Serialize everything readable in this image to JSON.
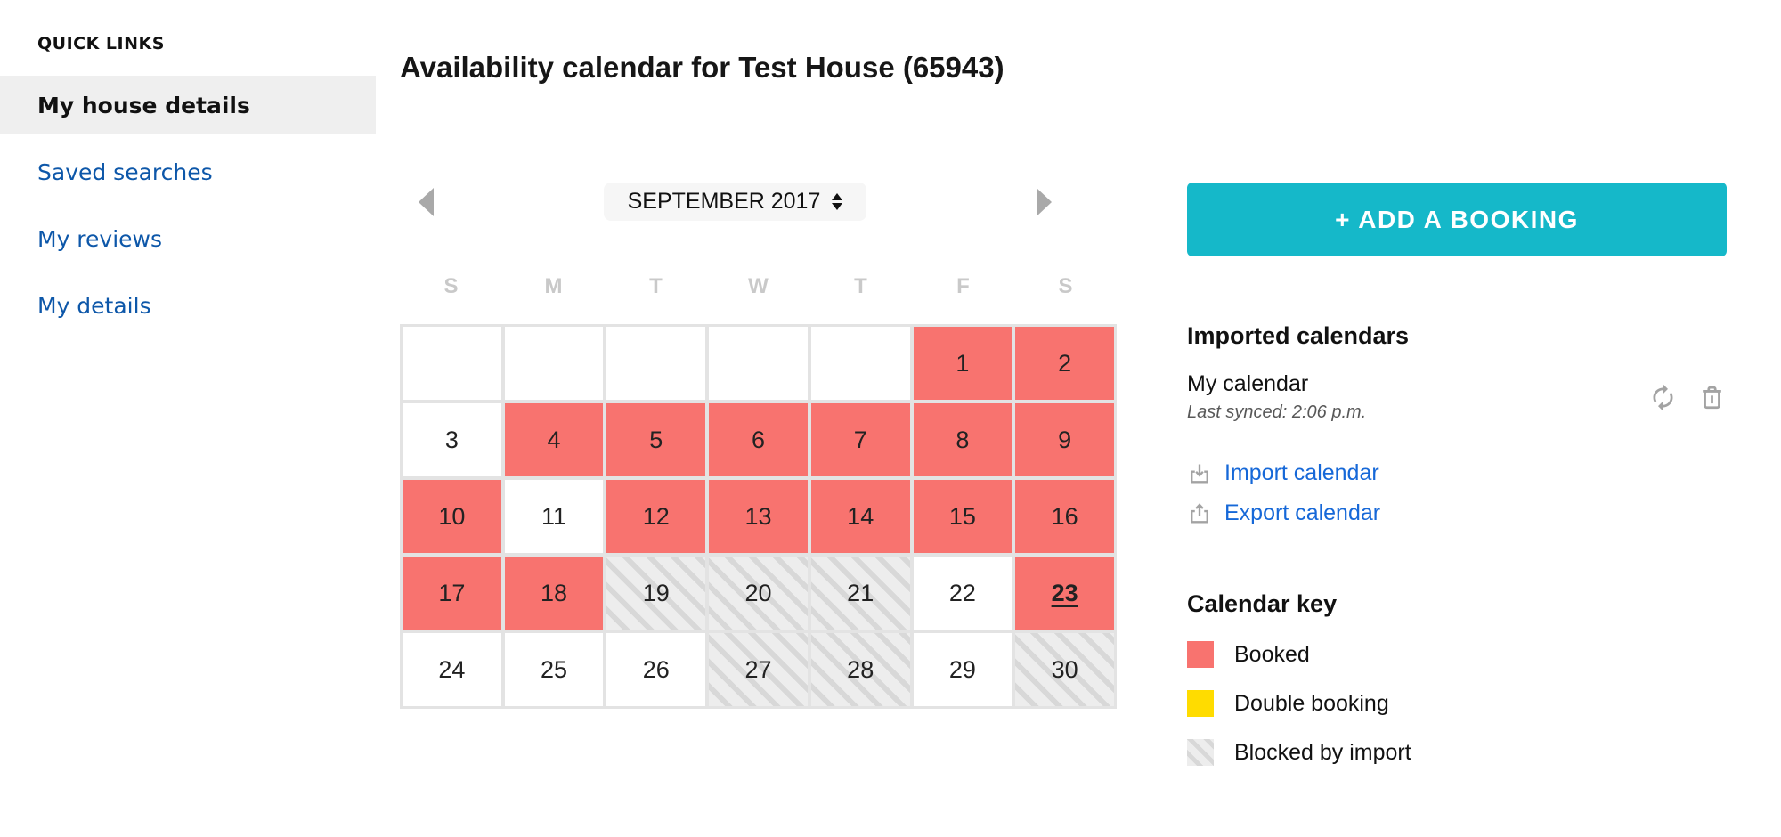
{
  "sidebar": {
    "heading": "QUICK LINKS",
    "items": [
      {
        "label": "My house details",
        "active": true
      },
      {
        "label": "Saved searches",
        "active": false
      },
      {
        "label": "My reviews",
        "active": false
      },
      {
        "label": "My details",
        "active": false
      }
    ]
  },
  "page_title": "Availability calendar for Test House (65943)",
  "calendar": {
    "month_label": "SEPTEMBER 2017",
    "day_headers": [
      "S",
      "M",
      "T",
      "W",
      "T",
      "F",
      "S"
    ],
    "cells": [
      {
        "day": "",
        "state": "blank"
      },
      {
        "day": "",
        "state": "blank"
      },
      {
        "day": "",
        "state": "blank"
      },
      {
        "day": "",
        "state": "blank"
      },
      {
        "day": "",
        "state": "blank"
      },
      {
        "day": "1",
        "state": "booked"
      },
      {
        "day": "2",
        "state": "booked"
      },
      {
        "day": "3",
        "state": "available"
      },
      {
        "day": "4",
        "state": "booked"
      },
      {
        "day": "5",
        "state": "booked"
      },
      {
        "day": "6",
        "state": "booked"
      },
      {
        "day": "7",
        "state": "booked"
      },
      {
        "day": "8",
        "state": "booked"
      },
      {
        "day": "9",
        "state": "booked"
      },
      {
        "day": "10",
        "state": "booked"
      },
      {
        "day": "11",
        "state": "available"
      },
      {
        "day": "12",
        "state": "booked"
      },
      {
        "day": "13",
        "state": "booked"
      },
      {
        "day": "14",
        "state": "booked"
      },
      {
        "day": "15",
        "state": "booked"
      },
      {
        "day": "16",
        "state": "booked"
      },
      {
        "day": "17",
        "state": "booked"
      },
      {
        "day": "18",
        "state": "booked"
      },
      {
        "day": "19",
        "state": "blocked"
      },
      {
        "day": "20",
        "state": "blocked"
      },
      {
        "day": "21",
        "state": "blocked"
      },
      {
        "day": "22",
        "state": "available"
      },
      {
        "day": "23",
        "state": "booked",
        "today": true
      },
      {
        "day": "24",
        "state": "available"
      },
      {
        "day": "25",
        "state": "available"
      },
      {
        "day": "26",
        "state": "available"
      },
      {
        "day": "27",
        "state": "blocked"
      },
      {
        "day": "28",
        "state": "blocked"
      },
      {
        "day": "29",
        "state": "available"
      },
      {
        "day": "30",
        "state": "blocked"
      }
    ]
  },
  "actions": {
    "add_booking_label": "+ ADD A BOOKING"
  },
  "imported_calendars": {
    "heading": "Imported calendars",
    "items": [
      {
        "name": "My calendar",
        "last_synced": "Last synced: 2:06 p.m."
      }
    ],
    "import_label": "Import calendar",
    "export_label": "Export calendar"
  },
  "calendar_key": {
    "heading": "Calendar key",
    "items": [
      {
        "label": "Booked",
        "type": "booked"
      },
      {
        "label": "Double booking",
        "type": "double"
      },
      {
        "label": "Blocked by import",
        "type": "blocked"
      }
    ]
  },
  "icons": {
    "prev_month": "chevron-left",
    "next_month": "chevron-right",
    "month_spinner": "up-down-arrows",
    "sync": "refresh",
    "delete": "trash",
    "import": "download-tray",
    "export": "upload-tray"
  },
  "colors": {
    "booked_red": "#f8736f",
    "double_booking_yellow": "#ffdc00",
    "button_teal": "#15b8c9",
    "link_blue": "#1668d8",
    "sidebar_link_blue": "#0d57a9"
  }
}
